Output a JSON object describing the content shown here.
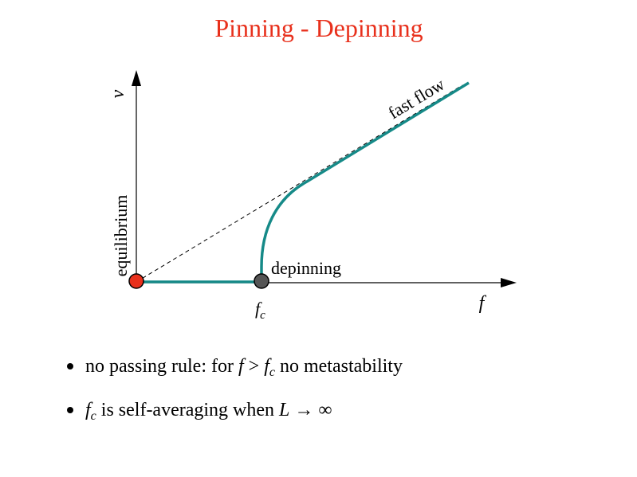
{
  "title": "Pinning - Depinning",
  "plot": {
    "y_axis_label": "v",
    "x_axis_label": "f",
    "critical_label": {
      "base": "f",
      "sub": "c"
    },
    "equilibrium_label": "equilibrium",
    "depinning_label": "depinning",
    "fast_flow_label": "fast flow"
  },
  "bullets": [
    [
      "no passing rule: for ",
      "f",
      " > ",
      "f",
      "c",
      " no metastability"
    ],
    [
      "f",
      "c",
      " is self-averaging when ",
      "L",
      " → ∞"
    ]
  ]
}
